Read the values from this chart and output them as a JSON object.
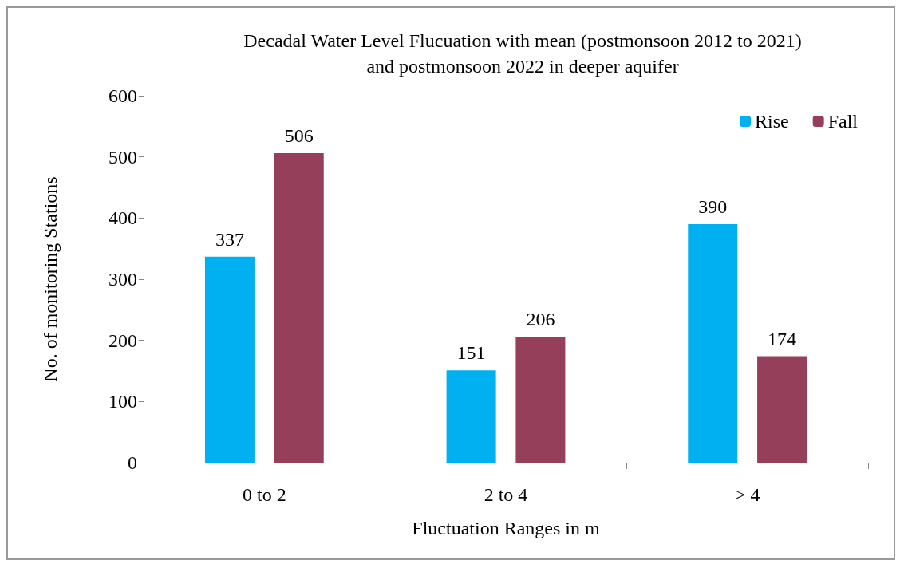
{
  "chart_data": {
    "type": "bar",
    "title": "Decadal Water Level Flucuation with mean (postmonsoon 2012 to 2021)\nand postmonsoon 2022 in deeper aquifer",
    "xlabel": "Fluctuation Ranges in m",
    "ylabel": "No. of monitoring Stations",
    "categories": [
      "0 to 2",
      "2 to 4",
      "> 4"
    ],
    "series": [
      {
        "name": "Rise",
        "color": "#00b0f0",
        "values": [
          337,
          151,
          390
        ]
      },
      {
        "name": "Fall",
        "color": "#953f5b",
        "values": [
          506,
          206,
          174
        ]
      }
    ],
    "ylim": [
      0,
      600
    ],
    "yticks": [
      0,
      100,
      200,
      300,
      400,
      500,
      600
    ],
    "grid": false,
    "legend": "top right",
    "data_labels": true
  }
}
